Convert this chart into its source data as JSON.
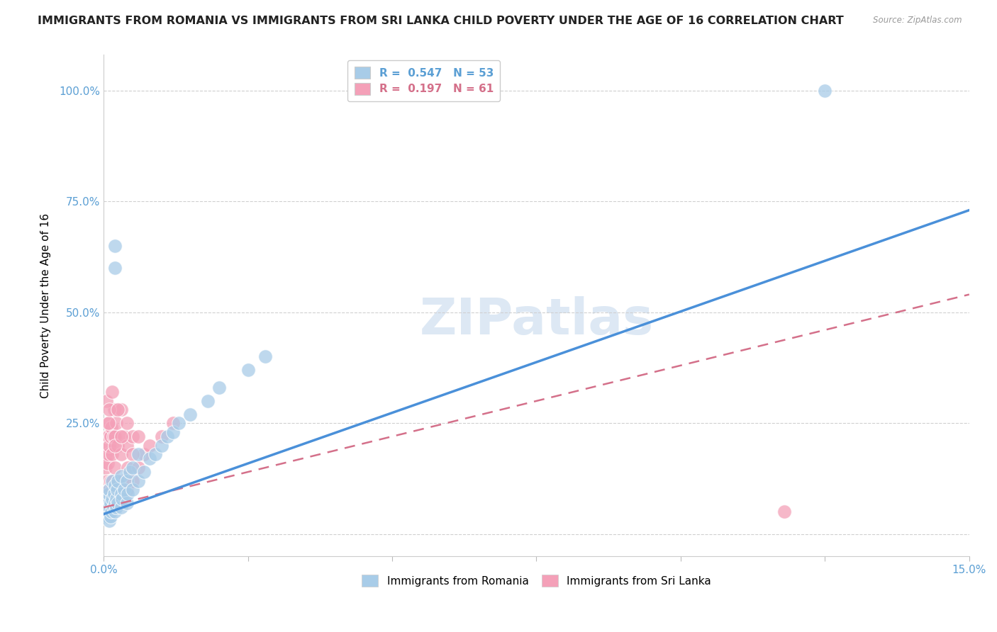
{
  "title": "IMMIGRANTS FROM ROMANIA VS IMMIGRANTS FROM SRI LANKA CHILD POVERTY UNDER THE AGE OF 16 CORRELATION CHART",
  "source": "Source: ZipAtlas.com",
  "ylabel": "Child Poverty Under the Age of 16",
  "yticks": [
    0.0,
    0.25,
    0.5,
    0.75,
    1.0
  ],
  "ytick_labels": [
    "",
    "25.0%",
    "50.0%",
    "75.0%",
    "100.0%"
  ],
  "xlim": [
    0.0,
    0.15
  ],
  "ylim": [
    -0.05,
    1.08
  ],
  "romania_color": "#a8cce8",
  "srilanka_color": "#f4a0b8",
  "romania_line_color": "#4a90d9",
  "srilanka_line_color": "#d4708a",
  "romania_R": 0.547,
  "romania_N": 53,
  "srilanka_R": 0.197,
  "srilanka_N": 61,
  "legend_label_romania": "Immigrants from Romania",
  "legend_label_srilanka": "Immigrants from Sri Lanka",
  "romania_x": [
    0.0005,
    0.0005,
    0.0005,
    0.0007,
    0.0007,
    0.0008,
    0.0008,
    0.001,
    0.001,
    0.001,
    0.0012,
    0.0012,
    0.0013,
    0.0015,
    0.0015,
    0.0017,
    0.0018,
    0.002,
    0.002,
    0.002,
    0.0022,
    0.0022,
    0.0023,
    0.0025,
    0.0025,
    0.003,
    0.003,
    0.003,
    0.0032,
    0.0035,
    0.004,
    0.004,
    0.0042,
    0.0045,
    0.005,
    0.005,
    0.006,
    0.006,
    0.007,
    0.008,
    0.009,
    0.01,
    0.011,
    0.012,
    0.013,
    0.015,
    0.018,
    0.02,
    0.025,
    0.028,
    0.002,
    0.002,
    0.125
  ],
  "romania_y": [
    0.05,
    0.06,
    0.07,
    0.04,
    0.08,
    0.05,
    0.09,
    0.03,
    0.06,
    0.1,
    0.04,
    0.07,
    0.05,
    0.08,
    0.12,
    0.06,
    0.09,
    0.05,
    0.07,
    0.11,
    0.06,
    0.08,
    0.1,
    0.07,
    0.12,
    0.06,
    0.09,
    0.13,
    0.08,
    0.1,
    0.07,
    0.12,
    0.09,
    0.14,
    0.1,
    0.15,
    0.12,
    0.18,
    0.14,
    0.17,
    0.18,
    0.2,
    0.22,
    0.23,
    0.25,
    0.27,
    0.3,
    0.33,
    0.37,
    0.4,
    0.65,
    0.6,
    1.0
  ],
  "srilanka_x": [
    0.0003,
    0.0003,
    0.0004,
    0.0004,
    0.0005,
    0.0005,
    0.0006,
    0.0006,
    0.0007,
    0.0007,
    0.0008,
    0.0008,
    0.0009,
    0.0009,
    0.001,
    0.001,
    0.001,
    0.0012,
    0.0012,
    0.0013,
    0.0013,
    0.0015,
    0.0015,
    0.0016,
    0.0017,
    0.0018,
    0.0018,
    0.002,
    0.002,
    0.002,
    0.0022,
    0.0022,
    0.0023,
    0.0025,
    0.0025,
    0.003,
    0.003,
    0.003,
    0.0032,
    0.0035,
    0.004,
    0.004,
    0.0042,
    0.005,
    0.005,
    0.006,
    0.007,
    0.008,
    0.01,
    0.012,
    0.0005,
    0.0008,
    0.001,
    0.0015,
    0.002,
    0.0025,
    0.003,
    0.004,
    0.005,
    0.006,
    0.118
  ],
  "srilanka_y": [
    0.1,
    0.15,
    0.08,
    0.18,
    0.1,
    0.2,
    0.12,
    0.22,
    0.08,
    0.16,
    0.1,
    0.22,
    0.08,
    0.18,
    0.1,
    0.2,
    0.25,
    0.12,
    0.22,
    0.1,
    0.24,
    0.08,
    0.18,
    0.12,
    0.22,
    0.1,
    0.28,
    0.08,
    0.15,
    0.22,
    0.1,
    0.25,
    0.12,
    0.08,
    0.2,
    0.1,
    0.18,
    0.28,
    0.12,
    0.22,
    0.1,
    0.2,
    0.15,
    0.12,
    0.22,
    0.15,
    0.18,
    0.2,
    0.22,
    0.25,
    0.3,
    0.25,
    0.28,
    0.32,
    0.2,
    0.28,
    0.22,
    0.25,
    0.18,
    0.22,
    0.05
  ],
  "romania_trend_x": [
    0.0,
    0.15
  ],
  "romania_trend_y": [
    0.045,
    0.73
  ],
  "srilanka_trend_x": [
    0.0,
    0.15
  ],
  "srilanka_trend_y": [
    0.06,
    0.54
  ],
  "background_color": "#ffffff",
  "grid_color": "#d0d0d0",
  "axis_label_color": "#5b9fd4",
  "title_fontsize": 11.5,
  "axis_fontsize": 11,
  "watermark_text": "ZIPatlas",
  "watermark_color": "#dde8f4",
  "watermark_fontsize": 52
}
